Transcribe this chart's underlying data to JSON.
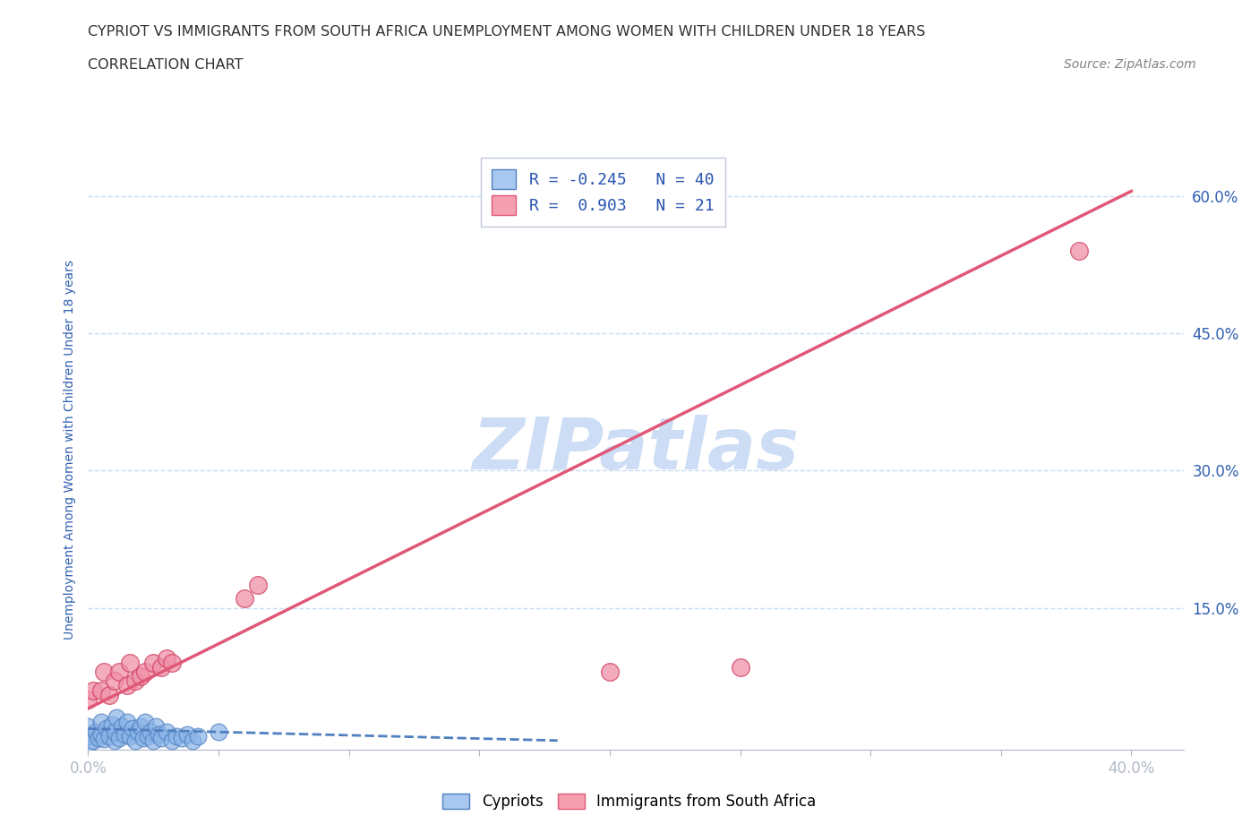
{
  "title_line1": "CYPRIOT VS IMMIGRANTS FROM SOUTH AFRICA UNEMPLOYMENT AMONG WOMEN WITH CHILDREN UNDER 18 YEARS",
  "title_line2": "CORRELATION CHART",
  "source": "Source: ZipAtlas.com",
  "ylabel": "Unemployment Among Women with Children Under 18 years",
  "xlim": [
    0.0,
    0.42
  ],
  "ylim": [
    -0.005,
    0.65
  ],
  "color_blue": "#a8c8f0",
  "color_pink": "#f5a0b0",
  "line_blue": "#5080c0",
  "line_pink": "#e05878",
  "dot_blue_face": "#8ab4e8",
  "dot_blue_edge": "#5080c0",
  "dot_pink_face": "#f090a8",
  "dot_pink_edge": "#d04060",
  "R_blue": -0.245,
  "N_blue": 40,
  "R_pink": 0.903,
  "N_pink": 21,
  "legend_text_color": "#2855b0",
  "watermark_color": "#ccddf5",
  "bg_color": "#ffffff",
  "grid_color": "#c8ddf0",
  "axis_color": "#b0b8c8",
  "tick_color": "#3060b0",
  "title_color": "#303030",
  "source_color": "#808080",
  "blue_scatter_x": [
    0.0,
    0.0,
    0.0,
    0.002,
    0.003,
    0.004,
    0.005,
    0.005,
    0.006,
    0.007,
    0.008,
    0.009,
    0.01,
    0.01,
    0.011,
    0.012,
    0.013,
    0.014,
    0.015,
    0.016,
    0.017,
    0.018,
    0.019,
    0.02,
    0.021,
    0.022,
    0.023,
    0.024,
    0.025,
    0.026,
    0.027,
    0.028,
    0.03,
    0.032,
    0.034,
    0.036,
    0.038,
    0.04,
    0.042,
    0.05
  ],
  "blue_scatter_y": [
    0.0,
    0.01,
    0.02,
    0.005,
    0.015,
    0.008,
    0.012,
    0.025,
    0.007,
    0.018,
    0.01,
    0.022,
    0.005,
    0.015,
    0.03,
    0.008,
    0.02,
    0.012,
    0.025,
    0.01,
    0.018,
    0.005,
    0.015,
    0.02,
    0.008,
    0.025,
    0.01,
    0.015,
    0.005,
    0.02,
    0.012,
    0.008,
    0.015,
    0.005,
    0.01,
    0.008,
    0.012,
    0.005,
    0.01,
    0.015
  ],
  "pink_scatter_x": [
    0.0,
    0.002,
    0.005,
    0.006,
    0.008,
    0.01,
    0.012,
    0.015,
    0.016,
    0.018,
    0.02,
    0.022,
    0.025,
    0.028,
    0.03,
    0.032,
    0.06,
    0.065,
    0.2,
    0.25,
    0.38
  ],
  "pink_scatter_y": [
    0.05,
    0.06,
    0.06,
    0.08,
    0.055,
    0.07,
    0.08,
    0.065,
    0.09,
    0.07,
    0.075,
    0.08,
    0.09,
    0.085,
    0.095,
    0.09,
    0.16,
    0.175,
    0.08,
    0.085,
    0.54
  ],
  "blue_trend_x": [
    0.0,
    0.18
  ],
  "blue_trend_y": [
    0.018,
    0.005
  ],
  "pink_trend_x": [
    0.0,
    0.4
  ],
  "pink_trend_y": [
    0.04,
    0.605
  ]
}
